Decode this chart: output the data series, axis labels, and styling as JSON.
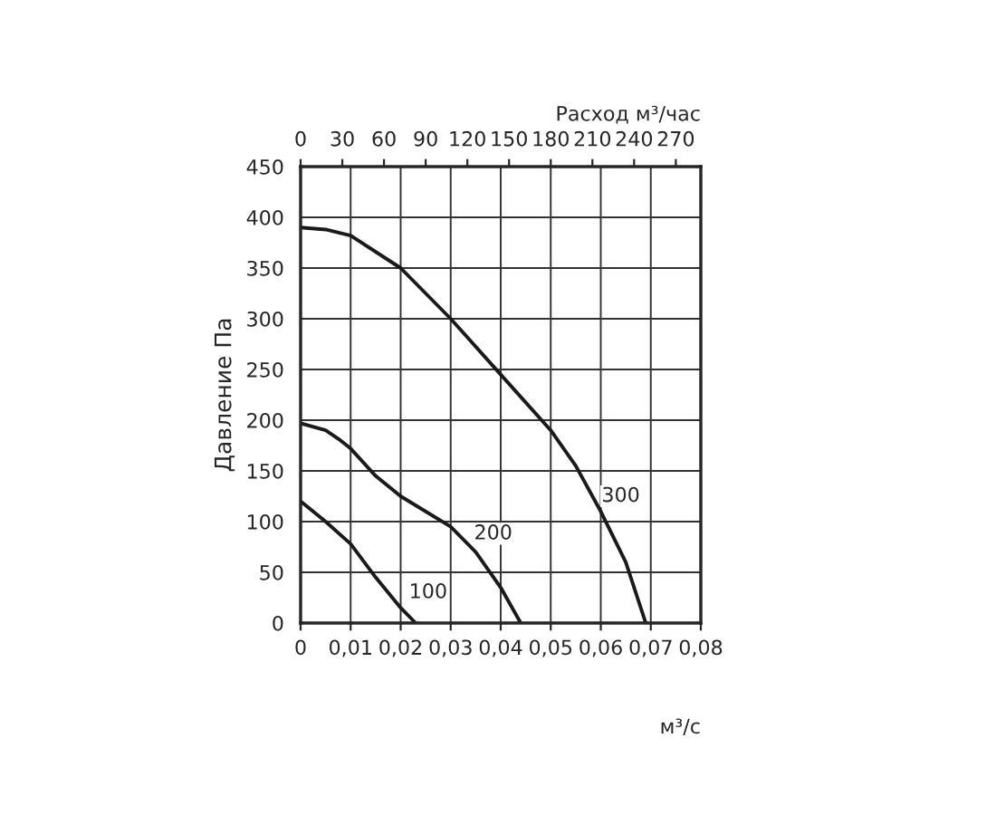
{
  "chart_data": {
    "type": "line",
    "xlabel": "м³/с",
    "ylabel": "Давление Па",
    "x2label": "Расход м³/час",
    "xlim": [
      0,
      0.08
    ],
    "xticks": [
      0,
      {
        "value": 0.01,
        "label": "0,01"
      },
      {
        "value": 0.02,
        "label": "0,02"
      },
      {
        "value": 0.03,
        "label": "0,03"
      },
      {
        "value": 0.04,
        "label": "0,04"
      },
      {
        "value": 0.05,
        "label": "0,05"
      },
      {
        "value": 0.06,
        "label": "0,06"
      },
      {
        "value": 0.07,
        "label": "0,07"
      },
      {
        "value": 0.08,
        "label": "0,08"
      }
    ],
    "x2lim": [
      0,
      288
    ],
    "x2ticks": [
      0,
      30,
      60,
      90,
      120,
      150,
      180,
      210,
      240,
      270
    ],
    "ylim": [
      0,
      450
    ],
    "yticks": [
      0,
      50,
      100,
      150,
      200,
      250,
      300,
      350,
      400,
      450
    ],
    "grid": true,
    "legend": false,
    "marker": "none",
    "line_style": "solid",
    "series": [
      {
        "color": "#1a1a1a",
        "x": [
          0,
          0.005,
          0.01,
          0.02,
          0.03,
          0.04,
          0.05,
          0.055,
          0.06,
          0.065,
          0.069
        ],
        "values": [
          390,
          388,
          382,
          350,
          300,
          245,
          190,
          155,
          110,
          60,
          0
        ]
      },
      {
        "color": "#1a1a1a",
        "x": [
          0,
          0.005,
          0.008,
          0.01,
          0.015,
          0.02,
          0.03,
          0.035,
          0.04,
          0.044
        ],
        "values": [
          197,
          190,
          180,
          172,
          145,
          125,
          95,
          70,
          35,
          0
        ]
      },
      {
        "color": "#1a1a1a",
        "x": [
          0,
          0.005,
          0.01,
          0.015,
          0.02,
          0.023
        ],
        "values": [
          120,
          100,
          78,
          45,
          15,
          0
        ]
      }
    ],
    "annotations": [
      {
        "text": "300",
        "x": 0.064,
        "y": 125
      },
      {
        "text": "200",
        "x": 0.0385,
        "y": 88
      },
      {
        "text": "100",
        "x": 0.0255,
        "y": 30
      }
    ]
  }
}
